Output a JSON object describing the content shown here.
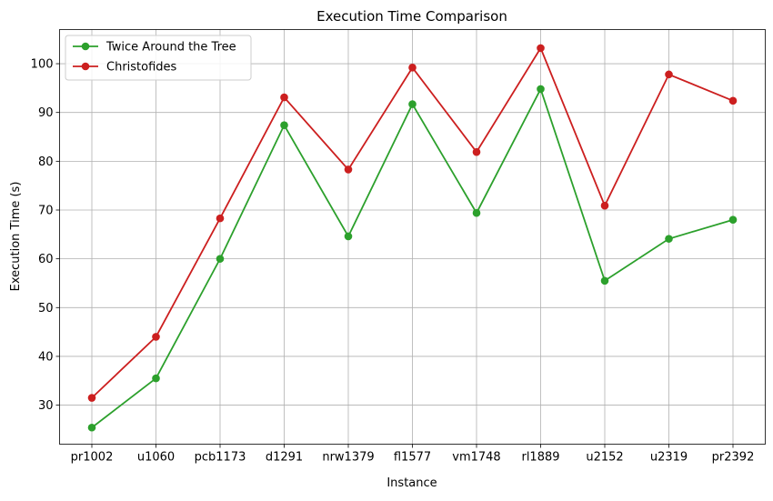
{
  "chart_data": {
    "type": "line",
    "title": "Execution Time Comparison",
    "xlabel": "Instance",
    "ylabel": "Execution Time (s)",
    "categories": [
      "pr1002",
      "u1060",
      "pcb1173",
      "d1291",
      "nrw1379",
      "fl1577",
      "vm1748",
      "rl1889",
      "u2152",
      "u2319",
      "pr2392"
    ],
    "ylim": [
      22,
      107
    ],
    "yticks": [
      30,
      40,
      50,
      60,
      70,
      80,
      90,
      100
    ],
    "grid": true,
    "legend_position": "upper-left",
    "series": [
      {
        "name": "Twice Around the Tree",
        "color": "#2ca02c",
        "values": [
          25.4,
          35.5,
          60.0,
          87.4,
          64.6,
          91.7,
          69.4,
          94.8,
          55.5,
          64.1,
          68.0
        ]
      },
      {
        "name": "Christofides",
        "color": "#cc1f1f",
        "values": [
          31.5,
          44.0,
          68.3,
          93.1,
          78.3,
          99.2,
          81.9,
          103.2,
          70.9,
          97.8,
          92.4
        ]
      }
    ]
  }
}
